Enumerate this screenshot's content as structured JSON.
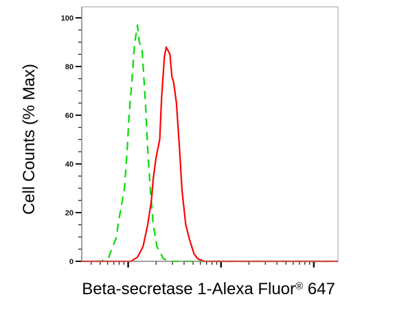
{
  "chart_data": {
    "type": "line",
    "title": "",
    "xlabel": "Beta-secretase 1-Alexa Fluor",
    "xlabel_mark": "®",
    "xlabel_suffix": "647",
    "ylabel": "Cell Counts (% Max)",
    "xscale": "log-decades (unlabeled)",
    "xlim": [
      0.5,
      3.26
    ],
    "ylim": [
      0,
      104.5
    ],
    "yticks": [
      0,
      20,
      40,
      60,
      80,
      100
    ],
    "yticklabels": [
      "0",
      "20",
      "40",
      "60",
      "80",
      "100"
    ],
    "grid": false,
    "series": [
      {
        "color": "#00dd00",
        "style": "dashed",
        "x": [
          0.5,
          0.71,
          0.79,
          0.87,
          0.9,
          0.96,
          0.99,
          1.01,
          1.04,
          1.07,
          1.1,
          1.12,
          1.15,
          1.16,
          1.19,
          1.21,
          1.24,
          1.27,
          1.31,
          1.38,
          1.45,
          3.26
        ],
        "y": [
          0,
          0,
          1.7,
          9.6,
          17,
          30,
          46,
          60,
          74,
          89.5,
          97,
          90,
          87,
          81,
          62,
          46,
          29,
          15,
          6,
          1,
          0,
          0
        ]
      },
      {
        "color": "#ff0000",
        "style": "solid",
        "x": [
          0.5,
          1.03,
          1.1,
          1.16,
          1.21,
          1.25,
          1.27,
          1.3,
          1.34,
          1.36,
          1.39,
          1.41,
          1.45,
          1.47,
          1.49,
          1.52,
          1.55,
          1.58,
          1.62,
          1.66,
          1.71,
          1.75,
          1.82,
          3.26
        ],
        "y": [
          0,
          0,
          1.7,
          6,
          15,
          25,
          34,
          42.5,
          50,
          67,
          84,
          88,
          85,
          76,
          73.5,
          65,
          48,
          29,
          15,
          9,
          3,
          1,
          0,
          0
        ]
      }
    ]
  }
}
